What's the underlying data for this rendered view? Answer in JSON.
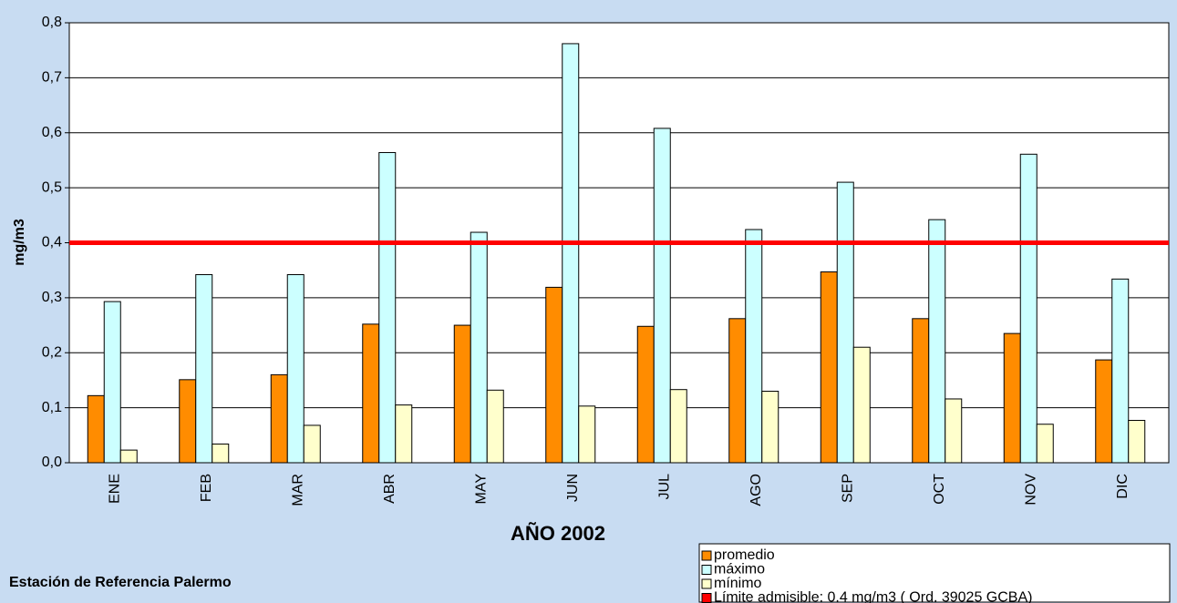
{
  "chart_data": {
    "type": "bar",
    "categories": [
      "ENE",
      "FEB",
      "MAR",
      "ABR",
      "MAY",
      "JUN",
      "JUL",
      "AGO",
      "SEP",
      "OCT",
      "NOV",
      "DIC"
    ],
    "series": [
      {
        "name": "promedio",
        "color": "#ff8c00",
        "values": [
          0.122,
          0.151,
          0.16,
          0.252,
          0.25,
          0.319,
          0.248,
          0.262,
          0.347,
          0.262,
          0.235,
          0.187
        ]
      },
      {
        "name": "máximo",
        "color": "#ccffff",
        "values": [
          0.293,
          0.342,
          0.342,
          0.564,
          0.419,
          0.762,
          0.608,
          0.424,
          0.51,
          0.442,
          0.561,
          0.334
        ]
      },
      {
        "name": "mínimo",
        "color": "#ffffcc",
        "values": [
          0.023,
          0.034,
          0.068,
          0.105,
          0.132,
          0.103,
          0.133,
          0.13,
          0.21,
          0.116,
          0.07,
          0.077
        ]
      }
    ],
    "reference_line": {
      "name": "Límite admisible: 0.4 mg/m3  ( Ord. 39025 GCBA)",
      "value": 0.4,
      "color": "#ff0000"
    },
    "ylim": [
      0,
      0.8
    ],
    "yticks": [
      {
        "value": 0,
        "label": "0,0"
      },
      {
        "value": 0.1,
        "label": "0,1"
      },
      {
        "value": 0.2,
        "label": "0,2"
      },
      {
        "value": 0.3,
        "label": "0,3"
      },
      {
        "value": 0.4,
        "label": "0,4"
      },
      {
        "value": 0.5,
        "label": "0,5"
      },
      {
        "value": 0.6,
        "label": "0,6"
      },
      {
        "value": 0.7,
        "label": "0,7"
      },
      {
        "value": 0.8,
        "label": "0,8"
      }
    ],
    "grid": true,
    "y_label": "mg/m3",
    "x_label": "AÑO 2002",
    "footer": "Estación de Referencia Palermo"
  }
}
